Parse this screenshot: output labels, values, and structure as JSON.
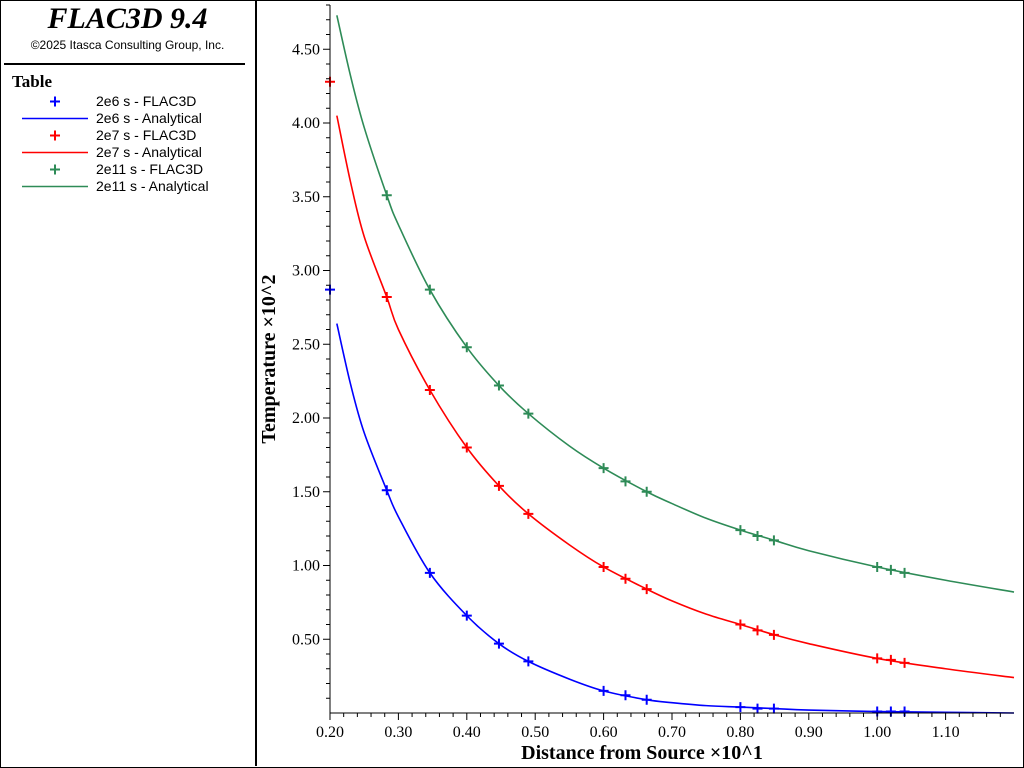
{
  "app": {
    "title": "FLAC3D 9.4",
    "copyright": "©2025 Itasca Consulting Group, Inc."
  },
  "legend": {
    "title": "Table",
    "entries": [
      {
        "label": "2e6 s - FLAC3D",
        "kind": "marker",
        "color": "#0000ff"
      },
      {
        "label": "2e6 s - Analytical",
        "kind": "line",
        "color": "#0000ff"
      },
      {
        "label": "2e7 s - FLAC3D",
        "kind": "marker",
        "color": "#ff0000"
      },
      {
        "label": "2e7 s - Analytical",
        "kind": "line",
        "color": "#ff0000"
      },
      {
        "label": "2e11 s - FLAC3D",
        "kind": "marker",
        "color": "#2e8b57"
      },
      {
        "label": "2e11 s - Analytical",
        "kind": "line",
        "color": "#2e8b57"
      }
    ]
  },
  "chart_data": {
    "type": "line",
    "xlabel": "Distance from Source ×10^1",
    "ylabel": "Temperature ×10^2",
    "xlim": [
      0.2,
      1.2
    ],
    "ylim": [
      0.0,
      4.8
    ],
    "xticks": [
      "0.20",
      "0.30",
      "0.40",
      "0.50",
      "0.60",
      "0.70",
      "0.80",
      "0.90",
      "1.00",
      "1.10"
    ],
    "yticks": [
      "0.50",
      "1.00",
      "1.50",
      "2.00",
      "2.50",
      "3.00",
      "3.50",
      "4.00",
      "4.50"
    ],
    "series": [
      {
        "name": "2e6 s - FLAC3D",
        "kind": "marker",
        "color": "#0000ff",
        "points": [
          [
            0.2,
            2.87
          ],
          [
            0.283,
            1.51
          ],
          [
            0.346,
            0.95
          ],
          [
            0.4,
            0.66
          ],
          [
            0.447,
            0.47
          ],
          [
            0.49,
            0.35
          ],
          [
            0.6,
            0.15
          ],
          [
            0.632,
            0.12
          ],
          [
            0.663,
            0.09
          ],
          [
            0.8,
            0.04
          ],
          [
            0.825,
            0.03
          ],
          [
            0.849,
            0.03
          ],
          [
            1.0,
            0.01
          ],
          [
            1.02,
            0.01
          ],
          [
            1.04,
            0.01
          ]
        ]
      },
      {
        "name": "2e6 s - Analytical",
        "kind": "line",
        "color": "#0000ff",
        "points": [
          [
            0.21,
            2.64
          ],
          [
            0.23,
            2.23
          ],
          [
            0.25,
            1.9
          ],
          [
            0.283,
            1.51
          ],
          [
            0.3,
            1.33
          ],
          [
            0.346,
            0.95
          ],
          [
            0.4,
            0.66
          ],
          [
            0.447,
            0.47
          ],
          [
            0.49,
            0.35
          ],
          [
            0.55,
            0.23
          ],
          [
            0.6,
            0.15
          ],
          [
            0.663,
            0.09
          ],
          [
            0.7,
            0.07
          ],
          [
            0.75,
            0.05
          ],
          [
            0.8,
            0.04
          ],
          [
            0.85,
            0.03
          ],
          [
            0.9,
            0.02
          ],
          [
            1.0,
            0.01
          ],
          [
            1.1,
            0.005
          ],
          [
            1.2,
            0.0
          ]
        ]
      },
      {
        "name": "2e7 s - FLAC3D",
        "kind": "marker",
        "color": "#ff0000",
        "points": [
          [
            0.2,
            4.28
          ],
          [
            0.283,
            2.82
          ],
          [
            0.346,
            2.19
          ],
          [
            0.4,
            1.8
          ],
          [
            0.447,
            1.54
          ],
          [
            0.49,
            1.35
          ],
          [
            0.6,
            0.99
          ],
          [
            0.632,
            0.91
          ],
          [
            0.663,
            0.84
          ],
          [
            0.8,
            0.6
          ],
          [
            0.825,
            0.56
          ],
          [
            0.849,
            0.53
          ],
          [
            1.0,
            0.37
          ],
          [
            1.02,
            0.36
          ],
          [
            1.04,
            0.34
          ]
        ]
      },
      {
        "name": "2e7 s - Analytical",
        "kind": "line",
        "color": "#ff0000",
        "points": [
          [
            0.21,
            4.05
          ],
          [
            0.23,
            3.6
          ],
          [
            0.25,
            3.23
          ],
          [
            0.283,
            2.82
          ],
          [
            0.3,
            2.6
          ],
          [
            0.346,
            2.19
          ],
          [
            0.4,
            1.8
          ],
          [
            0.447,
            1.54
          ],
          [
            0.49,
            1.35
          ],
          [
            0.55,
            1.14
          ],
          [
            0.6,
            0.99
          ],
          [
            0.663,
            0.84
          ],
          [
            0.7,
            0.76
          ],
          [
            0.75,
            0.67
          ],
          [
            0.8,
            0.6
          ],
          [
            0.85,
            0.53
          ],
          [
            0.9,
            0.47
          ],
          [
            1.0,
            0.37
          ],
          [
            1.1,
            0.3
          ],
          [
            1.2,
            0.24
          ]
        ]
      },
      {
        "name": "2e11 s - FLAC3D",
        "kind": "marker",
        "color": "#2e8b57",
        "points": [
          [
            0.283,
            3.51
          ],
          [
            0.346,
            2.87
          ],
          [
            0.4,
            2.48
          ],
          [
            0.447,
            2.22
          ],
          [
            0.49,
            2.03
          ],
          [
            0.6,
            1.66
          ],
          [
            0.632,
            1.57
          ],
          [
            0.663,
            1.5
          ],
          [
            0.8,
            1.24
          ],
          [
            0.825,
            1.2
          ],
          [
            0.849,
            1.17
          ],
          [
            1.0,
            0.99
          ],
          [
            1.02,
            0.97
          ],
          [
            1.04,
            0.95
          ]
        ]
      },
      {
        "name": "2e11 s - Analytical",
        "kind": "line",
        "color": "#2e8b57",
        "points": [
          [
            0.21,
            4.73
          ],
          [
            0.23,
            4.32
          ],
          [
            0.25,
            3.97
          ],
          [
            0.283,
            3.51
          ],
          [
            0.3,
            3.31
          ],
          [
            0.346,
            2.87
          ],
          [
            0.4,
            2.48
          ],
          [
            0.447,
            2.22
          ],
          [
            0.49,
            2.03
          ],
          [
            0.55,
            1.81
          ],
          [
            0.6,
            1.66
          ],
          [
            0.663,
            1.5
          ],
          [
            0.7,
            1.42
          ],
          [
            0.75,
            1.32
          ],
          [
            0.8,
            1.24
          ],
          [
            0.85,
            1.17
          ],
          [
            0.9,
            1.1
          ],
          [
            1.0,
            0.99
          ],
          [
            1.1,
            0.9
          ],
          [
            1.2,
            0.82
          ]
        ]
      }
    ]
  }
}
